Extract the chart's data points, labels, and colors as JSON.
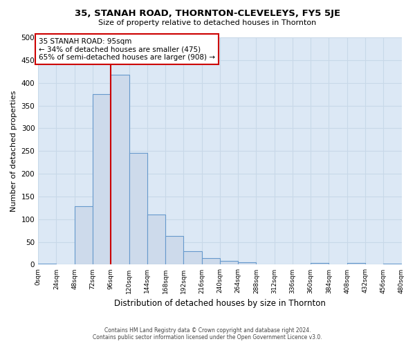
{
  "title": "35, STANAH ROAD, THORNTON-CLEVELEYS, FY5 5JE",
  "subtitle": "Size of property relative to detached houses in Thornton",
  "xlabel": "Distribution of detached houses by size in Thornton",
  "ylabel": "Number of detached properties",
  "footer_line1": "Contains HM Land Registry data © Crown copyright and database right 2024.",
  "footer_line2": "Contains public sector information licensed under the Open Government Licence v3.0.",
  "bin_edges": [
    0,
    24,
    48,
    72,
    96,
    120,
    144,
    168,
    192,
    216,
    240,
    264,
    288,
    312,
    336,
    360,
    384,
    408,
    432,
    456,
    480
  ],
  "bin_labels": [
    "0sqm",
    "24sqm",
    "48sqm",
    "72sqm",
    "96sqm",
    "120sqm",
    "144sqm",
    "168sqm",
    "192sqm",
    "216sqm",
    "240sqm",
    "264sqm",
    "288sqm",
    "312sqm",
    "336sqm",
    "360sqm",
    "384sqm",
    "408sqm",
    "432sqm",
    "456sqm",
    "480sqm"
  ],
  "counts": [
    2,
    0,
    128,
    375,
    418,
    245,
    110,
    63,
    30,
    15,
    8,
    5,
    0,
    0,
    0,
    3,
    0,
    3,
    0,
    2
  ],
  "bar_color": "#cddaeb",
  "bar_edge_color": "#6699cc",
  "marker_x": 96,
  "marker_line_color": "#cc0000",
  "annotation_title": "35 STANAH ROAD: 95sqm",
  "annotation_line1": "← 34% of detached houses are smaller (475)",
  "annotation_line2": "65% of semi-detached houses are larger (908) →",
  "annotation_box_edge": "#cc0000",
  "ylim": [
    0,
    500
  ],
  "xlim": [
    0,
    480
  ],
  "background_color": "#ffffff",
  "plot_background_color": "#dce8f5",
  "grid_color": "#c8d8e8",
  "yticks": [
    0,
    50,
    100,
    150,
    200,
    250,
    300,
    350,
    400,
    450,
    500
  ]
}
